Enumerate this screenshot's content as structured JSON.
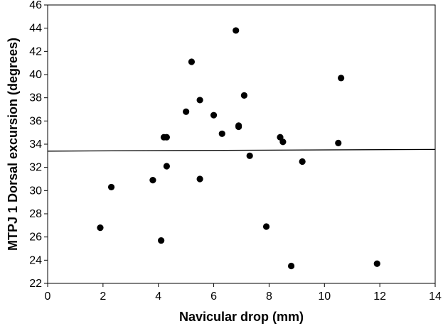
{
  "chart_data": {
    "type": "scatter",
    "title": "",
    "xlabel": "Navicular drop (mm)",
    "ylabel": "MTPJ 1 Dorsal excursion (degrees)",
    "xlim": [
      0,
      14
    ],
    "ylim": [
      22,
      46
    ],
    "xticks": [
      0,
      2,
      4,
      6,
      8,
      10,
      12,
      14
    ],
    "yticks": [
      22,
      24,
      26,
      28,
      30,
      32,
      34,
      36,
      38,
      40,
      42,
      44,
      46
    ],
    "grid": false,
    "series": [
      {
        "points": [
          {
            "x": 1.9,
            "y": 26.8
          },
          {
            "x": 2.3,
            "y": 30.3
          },
          {
            "x": 3.8,
            "y": 30.9
          },
          {
            "x": 4.1,
            "y": 25.7
          },
          {
            "x": 4.2,
            "y": 34.6
          },
          {
            "x": 4.3,
            "y": 34.6
          },
          {
            "x": 4.3,
            "y": 32.1
          },
          {
            "x": 5.0,
            "y": 36.8
          },
          {
            "x": 5.2,
            "y": 41.1
          },
          {
            "x": 5.5,
            "y": 37.8
          },
          {
            "x": 5.5,
            "y": 31.0
          },
          {
            "x": 6.0,
            "y": 36.5
          },
          {
            "x": 6.3,
            "y": 34.9
          },
          {
            "x": 6.8,
            "y": 43.8
          },
          {
            "x": 6.9,
            "y": 35.5
          },
          {
            "x": 6.9,
            "y": 35.6
          },
          {
            "x": 7.1,
            "y": 38.2
          },
          {
            "x": 7.3,
            "y": 33.0
          },
          {
            "x": 7.9,
            "y": 26.9
          },
          {
            "x": 8.4,
            "y": 34.6
          },
          {
            "x": 8.5,
            "y": 34.2
          },
          {
            "x": 8.8,
            "y": 23.5
          },
          {
            "x": 9.2,
            "y": 32.5
          },
          {
            "x": 10.5,
            "y": 34.1
          },
          {
            "x": 10.6,
            "y": 39.7
          },
          {
            "x": 11.9,
            "y": 23.7
          }
        ]
      }
    ],
    "trendline": {
      "x": [
        0,
        14
      ],
      "y": [
        33.4,
        33.55
      ]
    },
    "colors": {
      "marker": "#000000",
      "line": "#000000",
      "axis": "#000000"
    }
  }
}
